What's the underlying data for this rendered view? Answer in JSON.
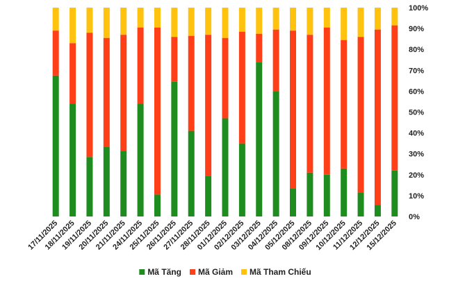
{
  "chart_data": {
    "type": "bar",
    "stacked": true,
    "percent_stacked": true,
    "categories": [
      "17/11/2025",
      "18/11/2025",
      "19/11/2025",
      "20/11/2025",
      "21/11/2025",
      "24/11/2025",
      "25/11/2025",
      "26/11/2025",
      "27/11/2025",
      "28/11/2025",
      "01/12/2025",
      "02/12/2025",
      "03/12/2025",
      "04/12/2025",
      "05/12/2025",
      "08/12/2025",
      "09/12/2025",
      "10/12/2025",
      "11/12/2025",
      "12/12/2025",
      "15/12/2025"
    ],
    "series": [
      {
        "name": "Mã Tăng",
        "color": "#1e8c1e",
        "values": [
          67.5,
          54,
          28.5,
          33.5,
          31.5,
          54,
          10.5,
          64.5,
          41,
          19.5,
          47,
          35,
          74,
          60,
          13.5,
          21,
          20,
          23,
          11.5,
          5.5,
          22
        ]
      },
      {
        "name": "Mã Giảm",
        "color": "#ff3f17",
        "values": [
          21.5,
          29,
          59.5,
          52,
          55.5,
          36.5,
          80,
          21.5,
          45.5,
          67.5,
          38.5,
          53.5,
          13.5,
          29.5,
          75.5,
          66,
          70.5,
          61.5,
          74.5,
          84,
          69.5
        ]
      },
      {
        "name": "Mã Tham Chiếu",
        "color": "#ffc20e",
        "values": [
          11,
          17,
          12,
          14.5,
          13,
          9.5,
          9.5,
          14,
          13.5,
          13,
          14.5,
          11.5,
          12.5,
          10.5,
          11,
          13,
          9.5,
          15.5,
          14,
          10.5,
          8.5
        ]
      }
    ],
    "y_ticks": [
      "0%",
      "10%",
      "20%",
      "30%",
      "40%",
      "50%",
      "60%",
      "70%",
      "80%",
      "90%",
      "100%"
    ],
    "ylim": [
      0,
      100
    ],
    "title": "",
    "xlabel": "",
    "ylabel": "",
    "grid": false,
    "legend_position": "bottom",
    "y_axis_position": "right"
  }
}
